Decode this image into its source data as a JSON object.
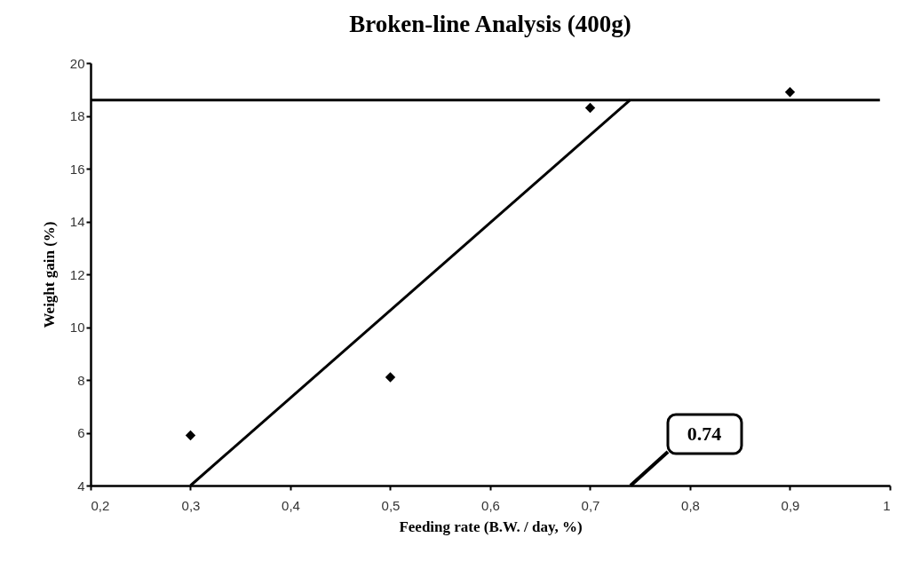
{
  "chart_data": {
    "type": "scatter",
    "title": "Broken-line Analysis (400g)",
    "xlabel": "Feeding rate (B.W. / day, %)",
    "ylabel": "Weight gain (%)",
    "x": [
      0.3,
      0.5,
      0.7,
      0.9
    ],
    "series": [
      {
        "type": "scatter",
        "color": "#000000",
        "values": [
          5.9,
          8.1,
          18.3,
          18.9
        ]
      },
      {
        "type": "line",
        "color": "#000000",
        "marker": "none",
        "x": [
          0.2,
          0.99
        ],
        "values": [
          18.6,
          18.6
        ]
      },
      {
        "type": "line",
        "color": "#000000",
        "marker": "none",
        "x": [
          0.3,
          0.74
        ],
        "values": [
          4,
          18.6
        ]
      }
    ],
    "annotations": [
      "0.74"
    ],
    "xlim": [
      0.2,
      1
    ],
    "ylim": [
      4,
      20
    ],
    "xticks": [
      {
        "value": 0.2,
        "label": "0,2"
      },
      {
        "value": 0.3,
        "label": "0,3"
      },
      {
        "value": 0.4,
        "label": "0,4"
      },
      {
        "value": 0.5,
        "label": "0,5"
      },
      {
        "value": 0.6,
        "label": "0,6"
      },
      {
        "value": 0.7,
        "label": "0,7"
      },
      {
        "value": 0.8,
        "label": "0,8"
      },
      {
        "value": 0.9,
        "label": "0,9"
      },
      1
    ],
    "yticks": [
      4,
      6,
      8,
      10,
      12,
      14,
      16,
      18,
      20
    ],
    "marker": "diamond",
    "grid": false
  }
}
